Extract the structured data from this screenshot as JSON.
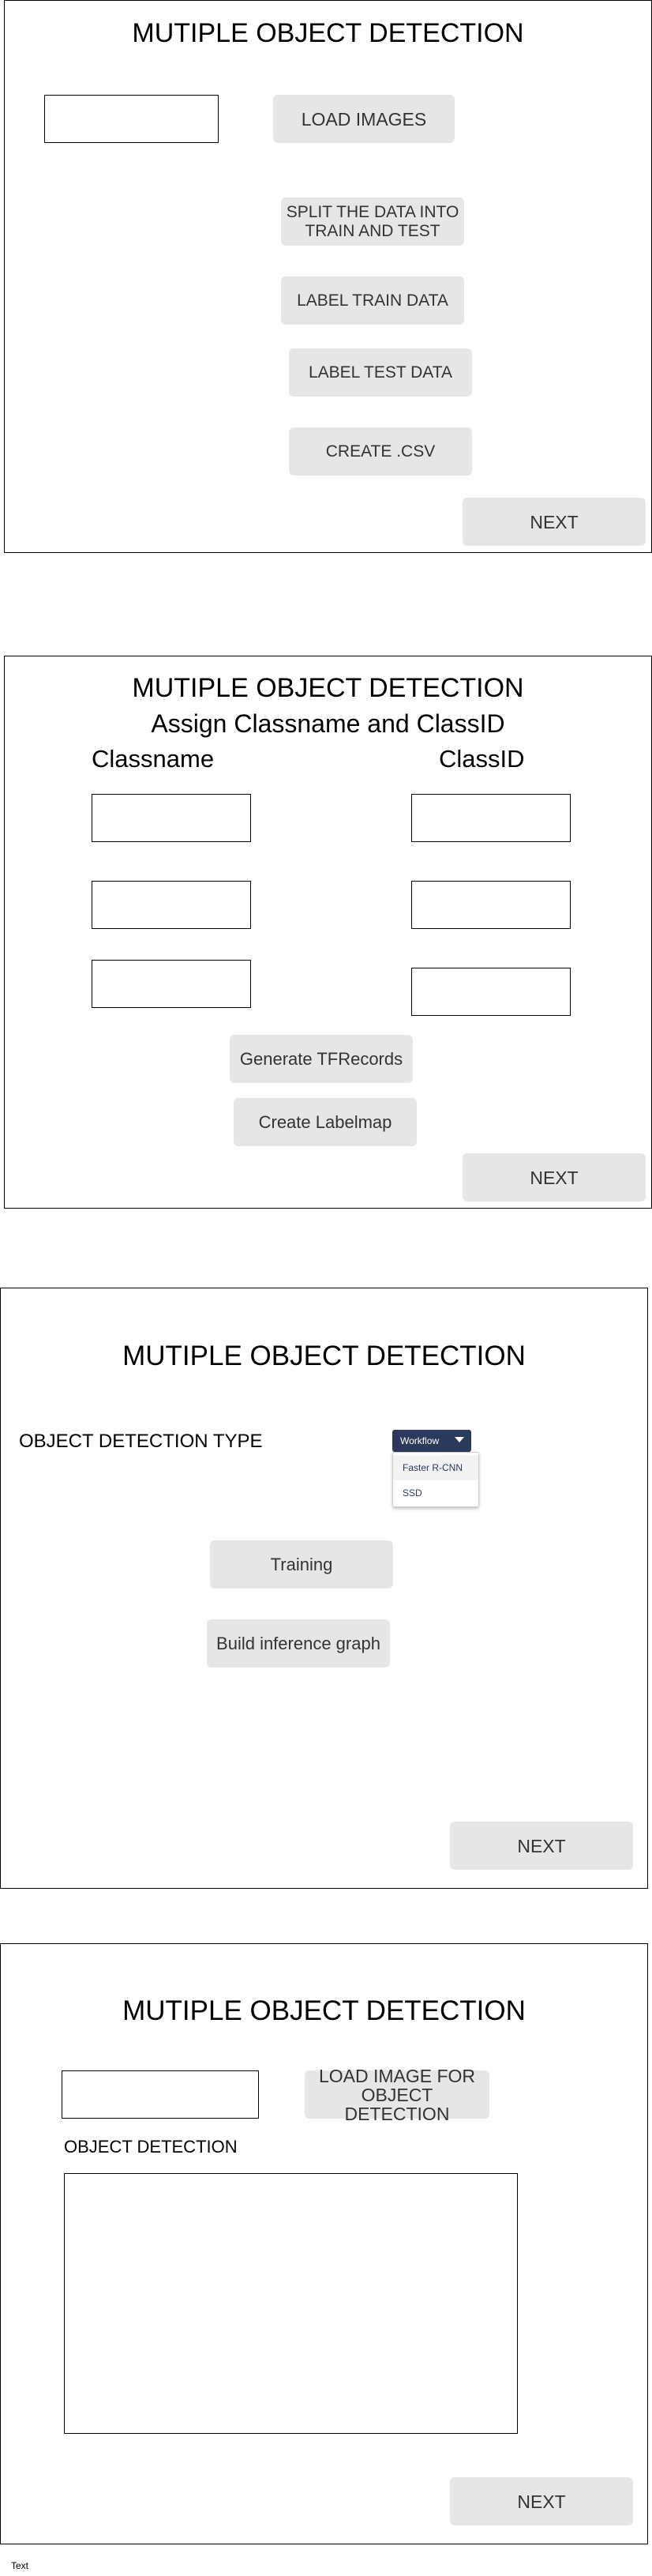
{
  "screen1": {
    "title": "MUTIPLE OBJECT DETECTION",
    "image_path_value": "",
    "load_images": "LOAD IMAGES",
    "split_data": "SPLIT THE DATA INTO TRAIN AND TEST",
    "label_train": "LABEL TRAIN DATA",
    "label_test": "LABEL TEST DATA",
    "create_csv": "CREATE .CSV",
    "next": "NEXT"
  },
  "screen2": {
    "title": "MUTIPLE OBJECT DETECTION",
    "subtitle": "Assign Classname and ClassID",
    "classname_header": "Classname",
    "classid_header": "ClassID",
    "classname_values": [
      "",
      "",
      ""
    ],
    "classid_values": [
      "",
      "",
      ""
    ],
    "generate_tfrecords": "Generate TFRecords",
    "create_labelmap": "Create Labelmap",
    "next": "NEXT"
  },
  "screen3": {
    "title": "MUTIPLE OBJECT DETECTION",
    "detection_type_label": "OBJECT DETECTION TYPE",
    "dropdown": {
      "selected": "Workflow",
      "options": [
        "Faster R-CNN",
        "SSD"
      ]
    },
    "training": "Training",
    "build_inference_graph": "Build inference graph",
    "next": "NEXT"
  },
  "screen4": {
    "title": "MUTIPLE OBJECT DETECTION",
    "image_path_value": "",
    "load_image_for_detection": "LOAD IMAGE FOR OBJECT DETECTION",
    "object_detection_label": "OBJECT DETECTION",
    "next": "NEXT"
  },
  "footer_text": "Text",
  "colors": {
    "button_bg": "#e6e6e6",
    "button_text": "#333333",
    "dropdown_header_bg": "#2b3a5c"
  }
}
